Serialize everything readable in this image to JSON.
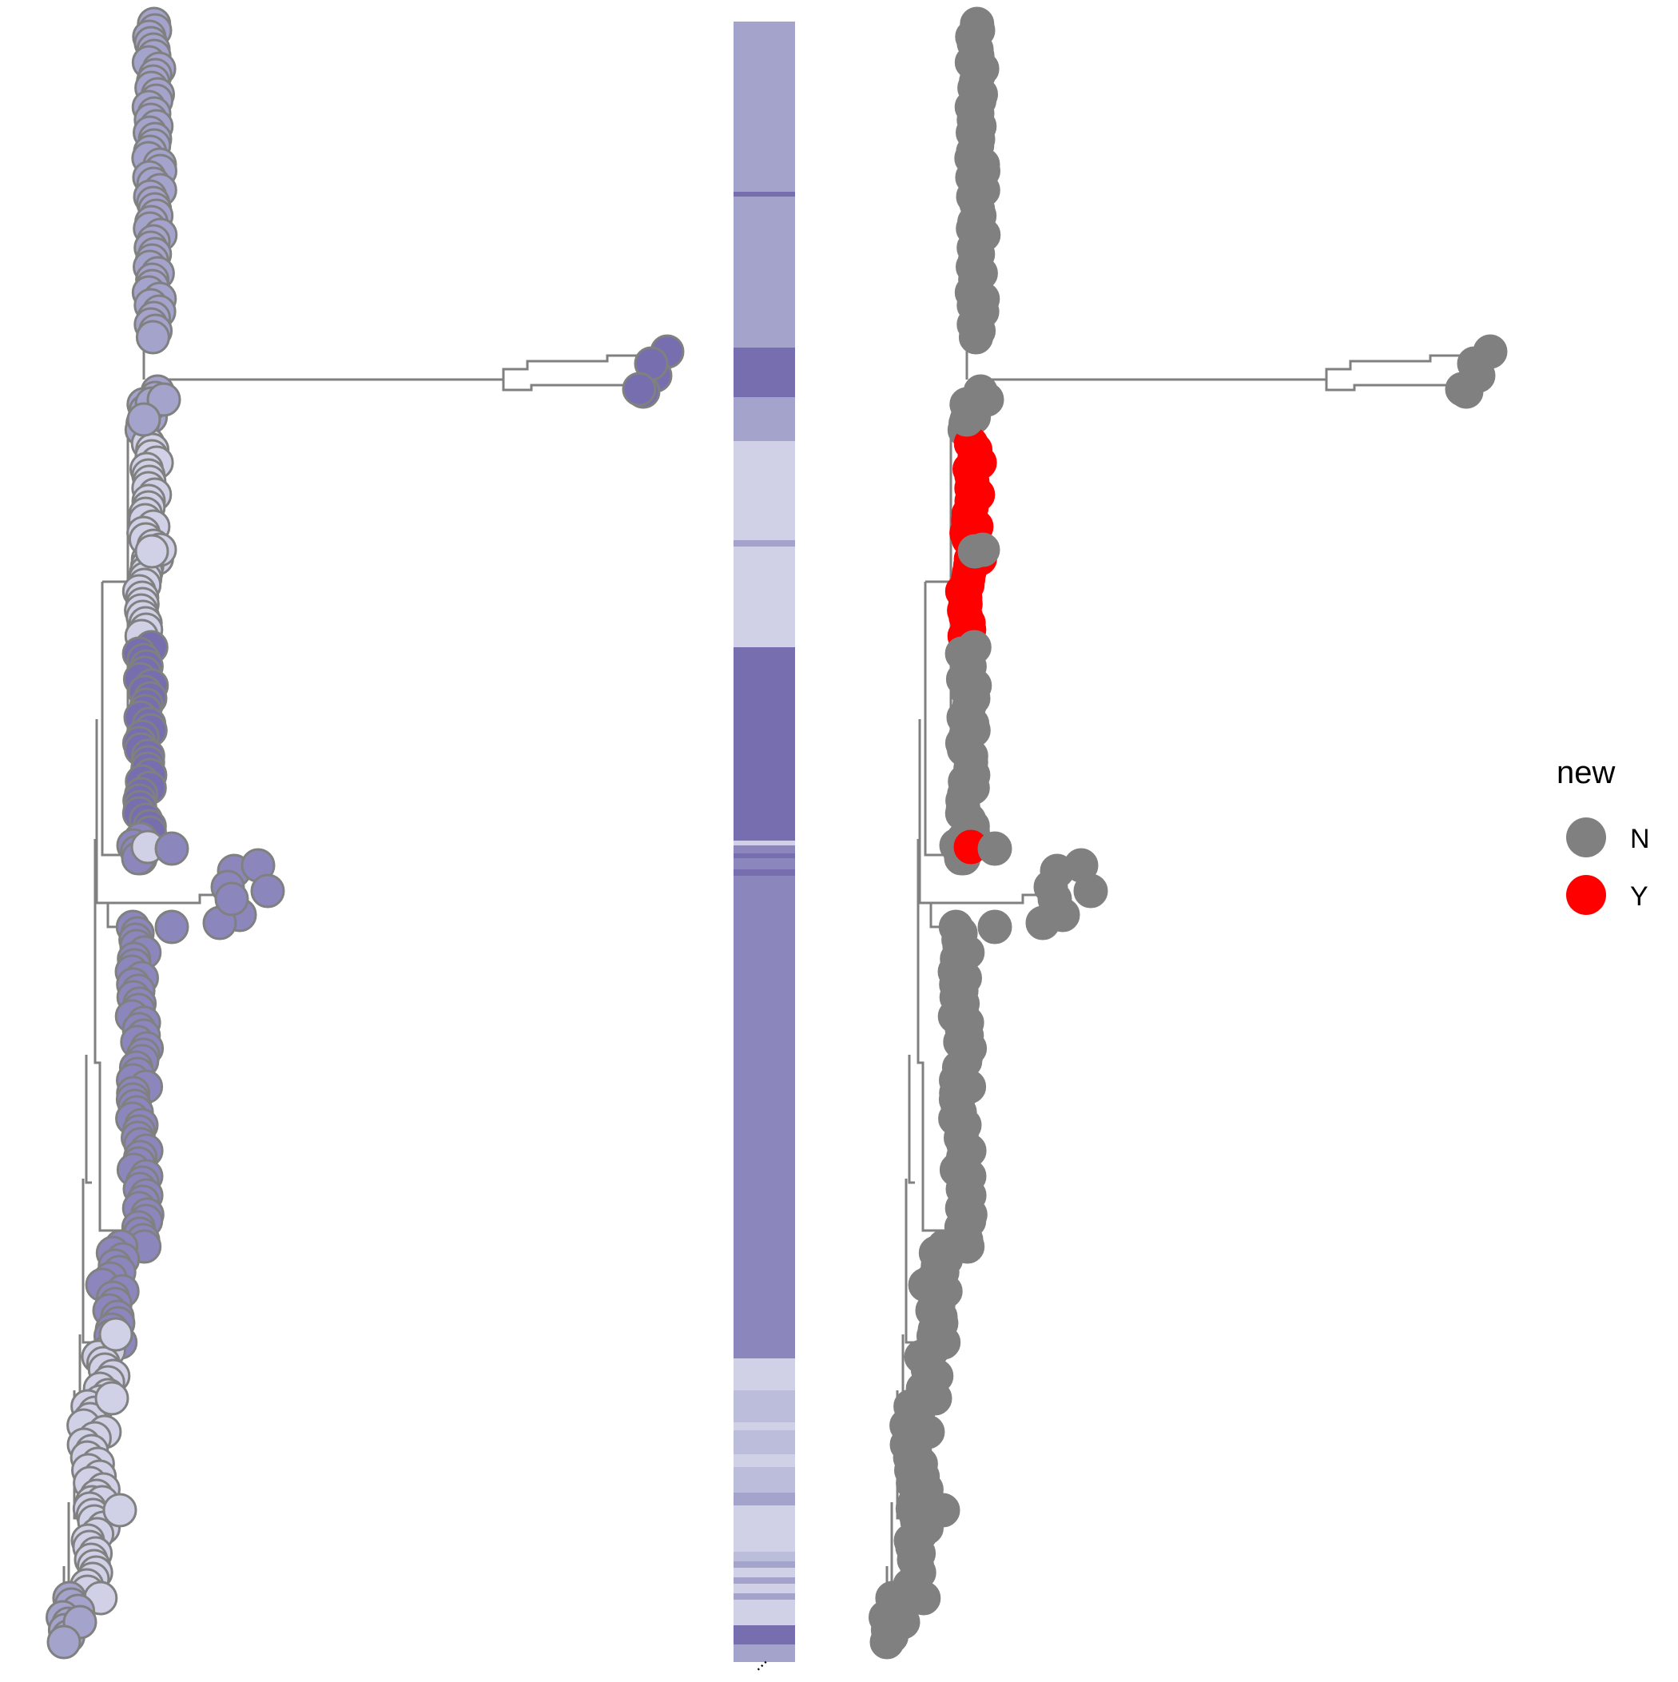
{
  "chart_data": {
    "type": "tree-with-heatmap",
    "legend": {
      "title": "new",
      "placement": "right",
      "entries": [
        {
          "label": "N",
          "color": "#808080"
        },
        {
          "label": "Y",
          "color": "#ff0000"
        }
      ]
    },
    "palette": {
      "tree_line": "#808080",
      "tip_outline": "#808080",
      "cat_a": "#a4a3cb",
      "cat_b": "#766eaf",
      "cat_c": "#d0d0e6",
      "cat_d": "#8b87bd",
      "cat_e": "#bcbcdb",
      "new_n": "#808080",
      "new_y": "#ff0000"
    },
    "heatmap_column_label": "..."
  }
}
